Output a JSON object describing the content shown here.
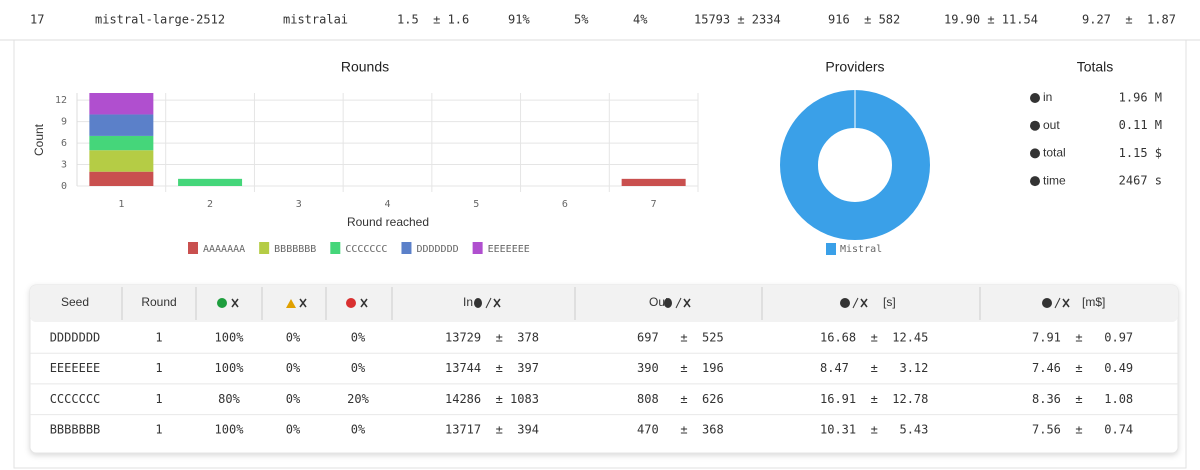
{
  "top_row": [
    "17",
    "mistral-large-2512",
    "mistralai",
    "1.5  ± 1.6",
    "91%",
    "5%",
    "4%",
    "15793 ± 2334",
    "916  ± 582",
    "19.90 ± 11.54",
    "9.27  ±  1.87"
  ],
  "chart_data": [
    {
      "type": "bar",
      "stacked": true,
      "title": "Rounds",
      "x_label": "Round reached",
      "y_label": "Count",
      "categories": [
        "1",
        "2",
        "3",
        "4",
        "5",
        "6",
        "7"
      ],
      "series": [
        {
          "name": "AAAAAAA",
          "color": "#c9504f",
          "values": [
            2,
            0,
            0,
            0,
            0,
            0,
            1
          ]
        },
        {
          "name": "BBBBBBB",
          "color": "#b5cc45",
          "values": [
            3,
            0,
            0,
            0,
            0,
            0,
            0
          ]
        },
        {
          "name": "CCCCCCC",
          "color": "#45d67a",
          "values": [
            2,
            1,
            0,
            0,
            0,
            0,
            0
          ]
        },
        {
          "name": "DDDDDDD",
          "color": "#5b80c9",
          "values": [
            3,
            0,
            0,
            0,
            0,
            0,
            0
          ]
        },
        {
          "name": "EEEEEEE",
          "color": "#b04fcf",
          "values": [
            3,
            0,
            0,
            0,
            0,
            0,
            0
          ]
        }
      ],
      "ylim": [
        0,
        13
      ],
      "yticks": [
        0,
        3,
        6,
        9,
        12
      ],
      "grid": true
    },
    {
      "type": "pie",
      "donut": true,
      "title": "Providers",
      "categories": [
        "Mistral"
      ],
      "values": [
        100
      ],
      "colors": [
        "#3aa0e8"
      ]
    }
  ],
  "totals": {
    "title": "Totals",
    "rows": [
      {
        "label": "in",
        "value": "1.96 M"
      },
      {
        "label": "out",
        "value": "0.11 M"
      },
      {
        "label": "total",
        "value": "1.15 $"
      },
      {
        "label": "time",
        "value": "2467 s"
      }
    ]
  },
  "table": {
    "headers": [
      "Seed",
      "Round",
      "In",
      "Out",
      "[s]",
      "[m$]"
    ],
    "rows": [
      [
        "DDDDDDD",
        "1",
        "100%",
        "0%",
        "0%",
        "13729  ±  378",
        "697   ±  525",
        "16.68  ±  12.45",
        "7.91  ±   0.97"
      ],
      [
        "EEEEEEE",
        "1",
        "100%",
        "0%",
        "0%",
        "13744  ±  397",
        "390   ±  196",
        "8.47   ±   3.12",
        "7.46  ±   0.49"
      ],
      [
        "CCCCCCC",
        "1",
        "80%",
        "0%",
        "20%",
        "14286  ± 1083",
        "808   ±  626",
        "16.91  ±  12.78",
        "8.36  ±   1.08"
      ],
      [
        "BBBBBBB",
        "1",
        "100%",
        "0%",
        "0%",
        "13717  ±  394",
        "470   ±  368",
        "10.31  ±   5.43",
        "7.56  ±   0.74"
      ]
    ]
  }
}
